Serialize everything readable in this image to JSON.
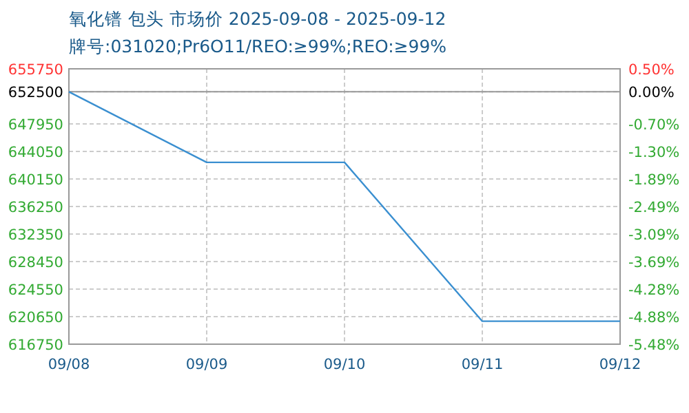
{
  "chart_data": {
    "type": "line",
    "title": "氧化镨 包头 市场价 2025-09-08 - 2025-09-12",
    "subtitle": "牌号:031020;Pr6O11/REO:≥99%;REO:≥99%",
    "categories": [
      "09/08",
      "09/09",
      "09/10",
      "09/11",
      "09/12"
    ],
    "series": [
      {
        "color": "#3a8fd0",
        "values": [
          652500,
          642500,
          642500,
          620000,
          620000
        ]
      }
    ],
    "ylim": [
      616750,
      655750
    ],
    "yticks": [
      616750,
      620650,
      624550,
      628450,
      632350,
      636250,
      640150,
      644050,
      647950,
      652500,
      655750
    ],
    "y2lim": [
      -5.48,
      0.5
    ],
    "y2ticks": [
      {
        "value": -5.48,
        "label": "-5.48%"
      },
      {
        "value": -4.88,
        "label": "-4.88%"
      },
      {
        "value": -4.28,
        "label": "-4.28%"
      },
      {
        "value": -3.69,
        "label": "-3.69%"
      },
      {
        "value": -3.09,
        "label": "-3.09%"
      },
      {
        "value": -2.49,
        "label": "-2.49%"
      },
      {
        "value": -1.89,
        "label": "-1.89%"
      },
      {
        "value": -1.3,
        "label": "-1.30%"
      },
      {
        "value": -0.7,
        "label": "-0.70%"
      },
      {
        "value": 0,
        "label": "0.00%"
      },
      {
        "value": 0.5,
        "label": "0.50%"
      }
    ],
    "ref_lines": [
      {
        "axis": "y",
        "value": 652500,
        "color": "#999999"
      }
    ],
    "grid": true,
    "marker": "none",
    "line_style": "solid"
  }
}
